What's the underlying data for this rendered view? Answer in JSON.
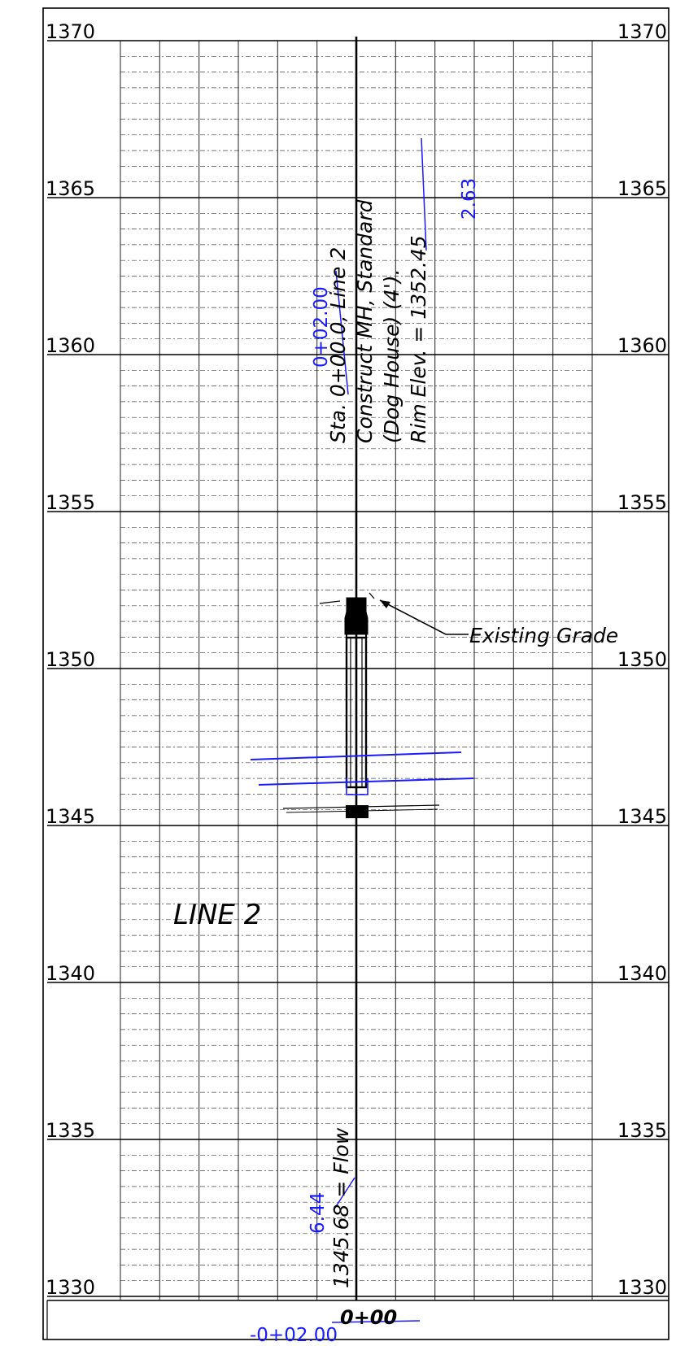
{
  "profile": {
    "elevations": [
      "1370",
      "1365",
      "1360",
      "1355",
      "1350",
      "1345",
      "1340",
      "1335",
      "1330"
    ],
    "manhole_note": {
      "line1": "Sta. 0+00.0, Line 2",
      "line2": "Construct MH, Standard",
      "line3": "(Dog House) (4').",
      "line4": "Rim Elev. = 1352.45"
    },
    "revision_station": "0+02.00",
    "revision_rim_depth": "2.63",
    "existing_grade_label": "Existing Grade",
    "line_label": "LINE 2",
    "flow_note": "1345.68 = Flow",
    "revision_flow_value": "6.44",
    "bottom_station": "0+00",
    "bottom_revision_station": "-0+02.00"
  },
  "colors": {
    "ink": "#000000",
    "revision": "#1a1aff",
    "grid": "#444444"
  }
}
